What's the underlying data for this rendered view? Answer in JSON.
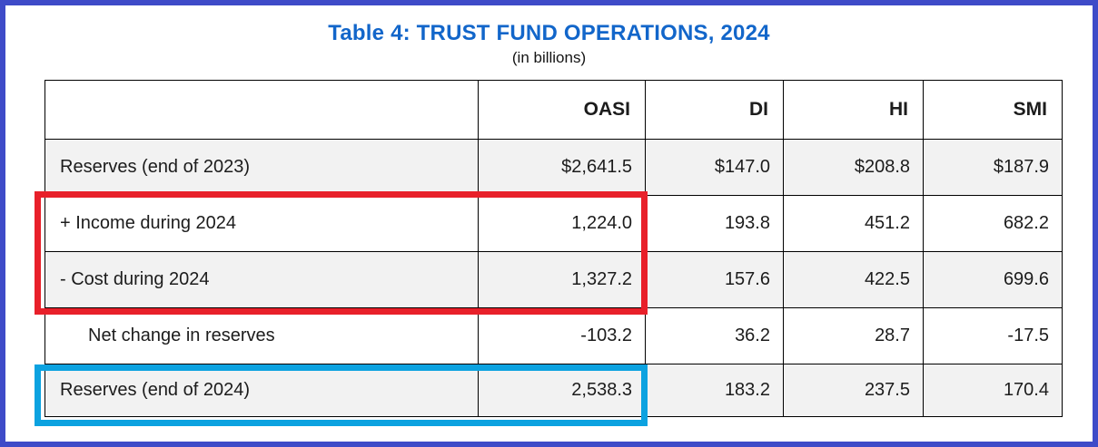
{
  "page": {
    "border_color": "#3e4bc8",
    "background_color": "#ffffff"
  },
  "header": {
    "title": "Table 4: TRUST FUND OPERATIONS, 2024",
    "title_color": "#1266ca",
    "subtitle": "(in billions)"
  },
  "table": {
    "shade_color": "#f2f2f2",
    "columns": [
      "",
      "OASI",
      "DI",
      "HI",
      "SMI"
    ],
    "rows": [
      {
        "label": "Reserves (end of 2023)",
        "values": [
          "$2,641.5",
          "$147.0",
          "$208.8",
          "$187.9"
        ],
        "indented": false,
        "shaded": true
      },
      {
        "label": "+ Income during 2024",
        "values": [
          "1,224.0",
          "193.8",
          "451.2",
          "682.2"
        ],
        "indented": false,
        "shaded": false
      },
      {
        "label": "- Cost during 2024",
        "values": [
          "1,327.2",
          "157.6",
          "422.5",
          "699.6"
        ],
        "indented": false,
        "shaded": true
      },
      {
        "label": "Net change in reserves",
        "values": [
          "-103.2",
          "36.2",
          "28.7",
          "-17.5"
        ],
        "indented": true,
        "shaded": false
      },
      {
        "label": "Reserves (end of 2024)",
        "values": [
          "2,538.3",
          "183.2",
          "237.5",
          "170.4"
        ],
        "indented": false,
        "shaded": true
      }
    ]
  },
  "annotations": {
    "red_box": {
      "color": "#e8202a",
      "highlights": "+ Income during 2024 and - Cost during 2024 rows, label and OASI columns"
    },
    "cyan_box": {
      "color": "#0ca2e0",
      "highlights": "Reserves (end of 2024) row, label and OASI columns"
    }
  }
}
